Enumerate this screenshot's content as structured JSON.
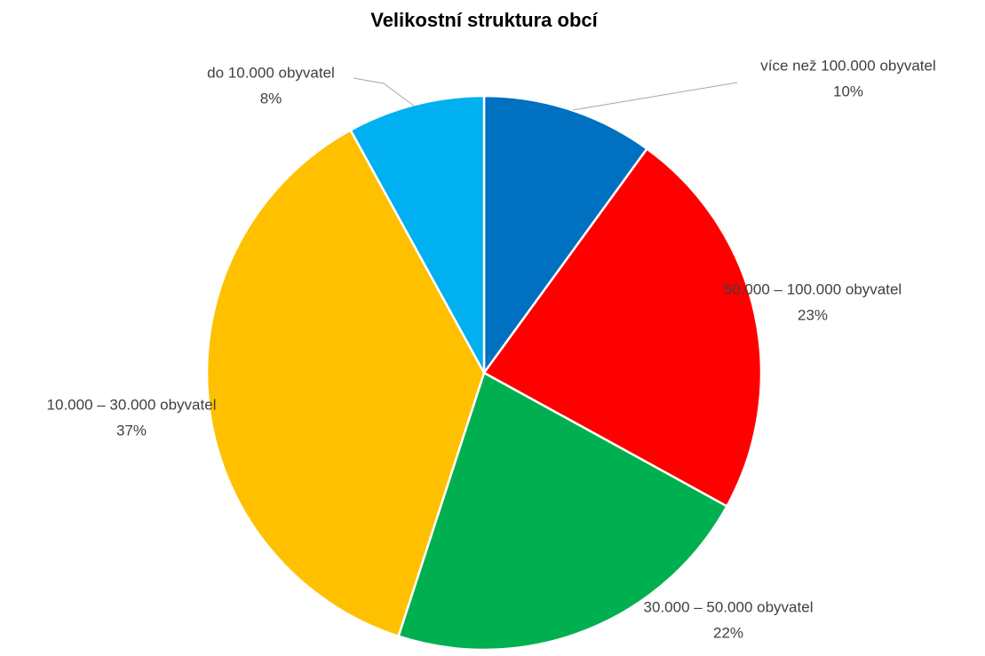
{
  "chart_data": {
    "type": "pie",
    "title": "Velikostní struktura obcí",
    "categories": [
      "více než 100.000 obyvatel",
      "50.000 – 100.000 obyvatel",
      "30.000 – 50.000 obyvatel",
      "10.000 – 30.000 obyvatel",
      "do 10.000 obyvatel"
    ],
    "values": [
      10,
      23,
      22,
      37,
      8
    ],
    "value_labels": [
      "10%",
      "23%",
      "22%",
      "37%",
      "8%"
    ],
    "colors": [
      "#0070c0",
      "#ff0000",
      "#00b050",
      "#ffc000",
      "#00b0f0"
    ]
  }
}
